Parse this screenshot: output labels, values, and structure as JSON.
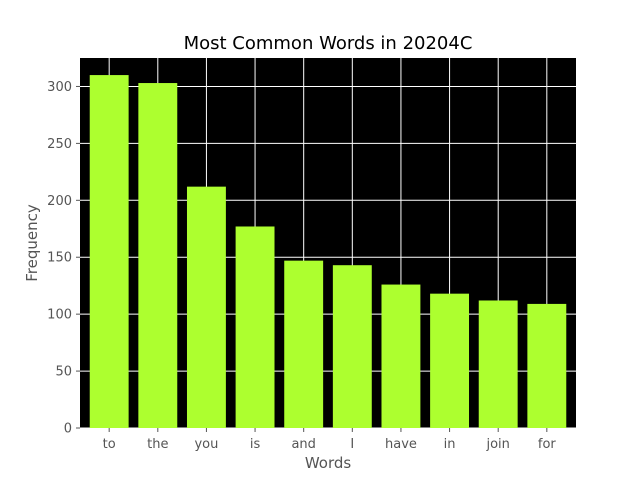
{
  "chart_data": {
    "type": "bar",
    "title": "Most Common Words in 20204C",
    "xlabel": "Words",
    "ylabel": "Frequency",
    "categories": [
      "to",
      "the",
      "you",
      "is",
      "and",
      "I",
      "have",
      "in",
      "join",
      "for"
    ],
    "values": [
      310,
      303,
      212,
      177,
      147,
      143,
      126,
      118,
      112,
      109
    ],
    "ylim": [
      0,
      325
    ],
    "yticks": [
      0,
      50,
      100,
      150,
      200,
      250,
      300
    ],
    "grid": true,
    "legend": "none",
    "colors": {
      "bar": "#adff2f",
      "plot_background": "#000000",
      "grid": "#ffffff",
      "text": "#555555"
    }
  }
}
